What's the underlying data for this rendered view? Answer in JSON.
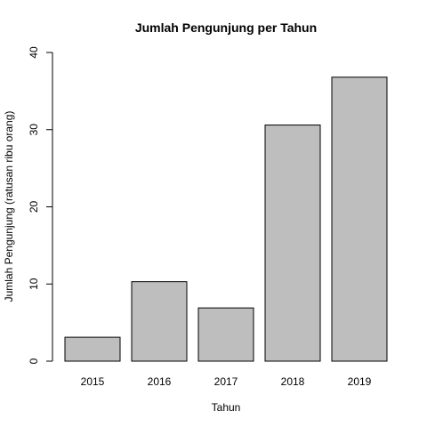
{
  "chart_data": {
    "type": "bar",
    "title": "Jumlah Pengunjung per Tahun",
    "xlabel": "Tahun",
    "ylabel": "Jumlah Pengunjung (ratusan ribu orang)",
    "categories": [
      "2015",
      "2016",
      "2017",
      "2018",
      "2019"
    ],
    "values": [
      3.1,
      10.3,
      6.9,
      30.6,
      36.8
    ],
    "ylim": [
      0,
      40
    ],
    "yticks": [
      "0",
      "10",
      "20",
      "30",
      "40"
    ],
    "grid": false,
    "bar_color": "#bebebe"
  }
}
